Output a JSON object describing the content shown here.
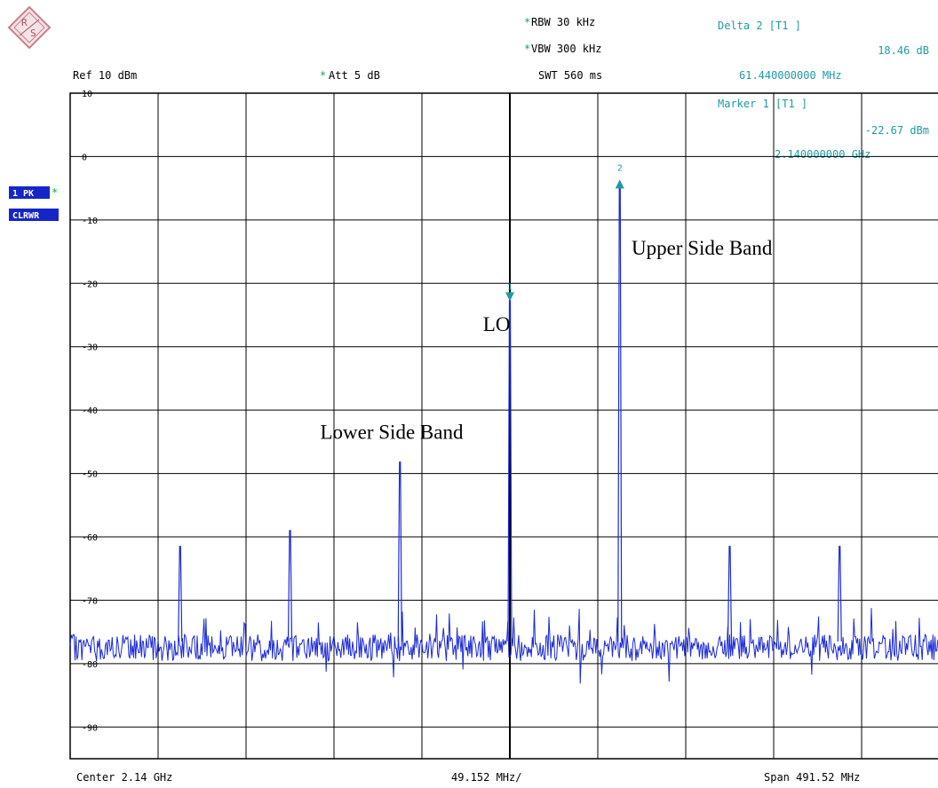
{
  "header": {
    "rbw": "RBW  30 kHz",
    "vbw": "VBW  300 kHz",
    "swt": "SWT  560 ms",
    "ref": "Ref   10 dBm",
    "att": "Att    5 dB",
    "star": "*"
  },
  "marker_info": {
    "delta_title": "Delta 2 [T1 ]",
    "delta_level": "18.46 dB",
    "delta_freq": "61.440000000 MHz",
    "marker_title": "Marker 1 [T1 ]",
    "marker_level": "-22.67 dBm",
    "marker_freq": "2.140000000 GHz"
  },
  "trace_badge": {
    "line1": "1 PK",
    "line2": "CLRWR"
  },
  "footer": {
    "center": "Center  2.14 GHz",
    "div": "49.152 MHz/",
    "span": "Span  491.52 MHz"
  },
  "colors": {
    "trace": "#1b2bd6",
    "marker": "#1f9aa2",
    "badge": "#1526c8",
    "star": "#13a848",
    "grid": "#000000"
  },
  "chart_data": {
    "type": "line",
    "ylim": [
      -95,
      10
    ],
    "xlim": [
      1894.24,
      2385.76
    ],
    "x_unit": "MHz",
    "y_unit": "dBm",
    "y_ticks": [
      10,
      0,
      -10,
      -20,
      -30,
      -40,
      -50,
      -60,
      -70,
      -80,
      -90
    ],
    "grid": true,
    "noise_floor": -77.5,
    "peaks": [
      {
        "x": 1955.68,
        "y": -61.5
      },
      {
        "x": 2017.12,
        "y": -59.0
      },
      {
        "x": 2078.56,
        "y": -48.2
      },
      {
        "x": 2140.0,
        "y": -22.67
      },
      {
        "x": 2201.44,
        "y": -4.2
      },
      {
        "x": 2262.88,
        "y": -61.5
      },
      {
        "x": 2324.32,
        "y": -61.5
      }
    ],
    "markers": [
      {
        "label": "1",
        "x": 2140.0,
        "y": -22.67
      },
      {
        "label": "2",
        "x": 2201.44,
        "y": -4.2
      }
    ],
    "annotations": [
      {
        "text": "LO",
        "x": 2125.0,
        "y": -27.5
      },
      {
        "text": "Upper Side Band",
        "x": 2208.0,
        "y": -15.5
      },
      {
        "text": "Lower Side Band",
        "x": 2034.0,
        "y": -44.5
      }
    ]
  }
}
